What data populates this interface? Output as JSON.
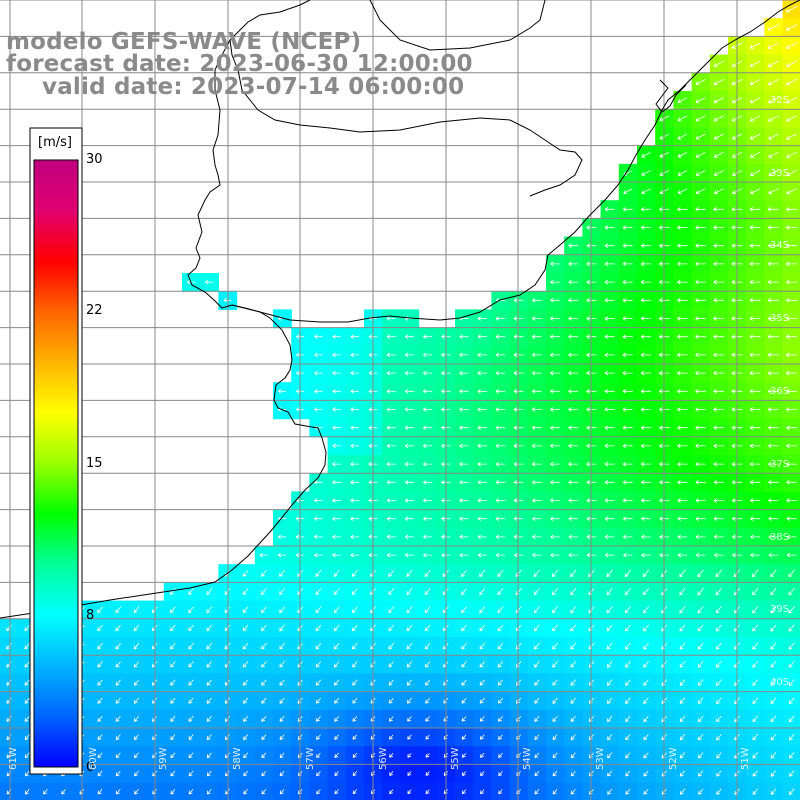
{
  "title": {
    "line1": "modelo GEFS-WAVE (NCEP)",
    "line2": "forecast date: 2023-06-30 12:00:00",
    "line3": "valid date: 2023-07-14 06:00:00"
  },
  "colorbar": {
    "unit": "[m/s]",
    "ticks": [
      "30",
      "22",
      "15",
      "8",
      "0"
    ],
    "tick_values": [
      30,
      22,
      15,
      8,
      0
    ],
    "min": 0,
    "max": 30,
    "colors": [
      "#0000ff",
      "#0064ff",
      "#00b4ff",
      "#00ffff",
      "#00ff9a",
      "#00ff00",
      "#9aff00",
      "#ffff00",
      "#ffb400",
      "#ff6400",
      "#ff0000",
      "#e00070",
      "#c00080"
    ]
  },
  "map": {
    "lat_labels": [
      "32S",
      "33S",
      "34S",
      "35S",
      "36S",
      "37S",
      "38S",
      "39S",
      "40S"
    ],
    "lon_labels": [
      "61W",
      "60W",
      "59W",
      "58W",
      "57W",
      "56W",
      "55W",
      "54W",
      "53W",
      "52W",
      "51W"
    ],
    "land_color": "#ffffff",
    "coast_color": "#000000",
    "grid_color": "#888888",
    "arrow_color": "#ffffff"
  }
}
